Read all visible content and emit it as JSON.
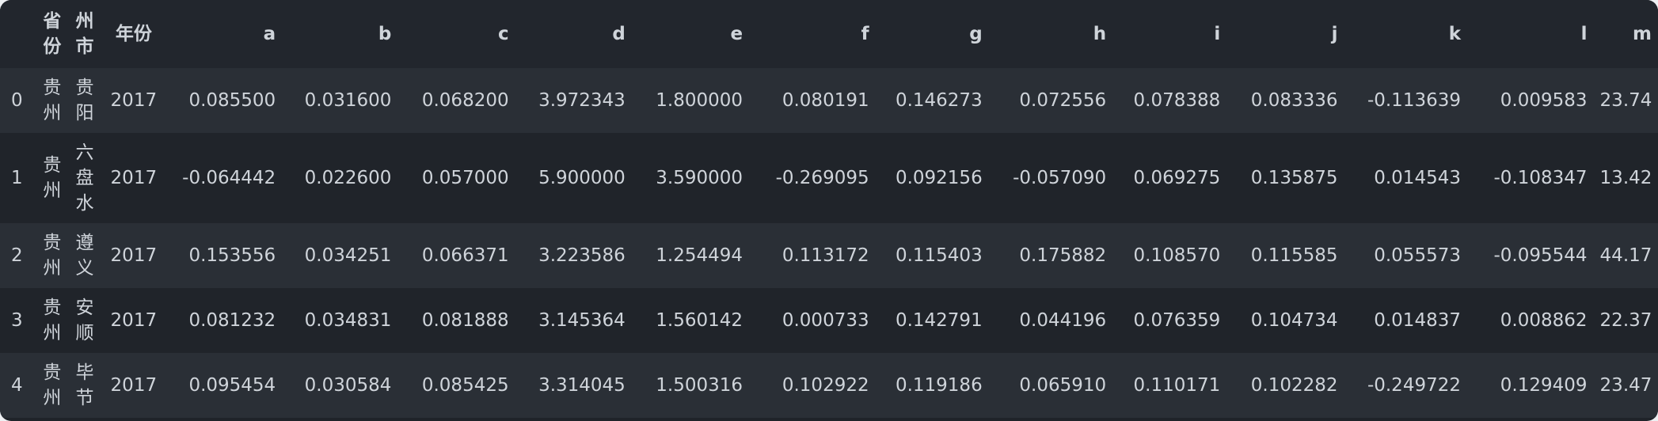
{
  "table": {
    "columns": {
      "index": "",
      "province": [
        "省",
        "份"
      ],
      "city": [
        "州",
        "市"
      ],
      "year": "年份",
      "a": "a",
      "b": "b",
      "c": "c",
      "d": "d",
      "e": "e",
      "f": "f",
      "g": "g",
      "h": "h",
      "i": "i",
      "j": "j",
      "k": "k",
      "l": "l",
      "m": "m"
    },
    "rows": [
      {
        "index": "0",
        "province": [
          "贵",
          "州"
        ],
        "city": [
          "贵",
          "阳"
        ],
        "year": "2017",
        "a": "0.085500",
        "b": "0.031600",
        "c": "0.068200",
        "d": "3.972343",
        "e": "1.800000",
        "f": "0.080191",
        "g": "0.146273",
        "h": "0.072556",
        "i": "0.078388",
        "j": "0.083336",
        "k": "-0.113639",
        "l": "0.009583",
        "m": "23.74"
      },
      {
        "index": "1",
        "province": [
          "贵",
          "州"
        ],
        "city": [
          "六",
          "盘",
          "水"
        ],
        "year": "2017",
        "a": "-0.064442",
        "b": "0.022600",
        "c": "0.057000",
        "d": "5.900000",
        "e": "3.590000",
        "f": "-0.269095",
        "g": "0.092156",
        "h": "-0.057090",
        "i": "0.069275",
        "j": "0.135875",
        "k": "0.014543",
        "l": "-0.108347",
        "m": "13.42"
      },
      {
        "index": "2",
        "province": [
          "贵",
          "州"
        ],
        "city": [
          "遵",
          "义"
        ],
        "year": "2017",
        "a": "0.153556",
        "b": "0.034251",
        "c": "0.066371",
        "d": "3.223586",
        "e": "1.254494",
        "f": "0.113172",
        "g": "0.115403",
        "h": "0.175882",
        "i": "0.108570",
        "j": "0.115585",
        "k": "0.055573",
        "l": "-0.095544",
        "m": "44.17"
      },
      {
        "index": "3",
        "province": [
          "贵",
          "州"
        ],
        "city": [
          "安",
          "顺"
        ],
        "year": "2017",
        "a": "0.081232",
        "b": "0.034831",
        "c": "0.081888",
        "d": "3.145364",
        "e": "1.560142",
        "f": "0.000733",
        "g": "0.142791",
        "h": "0.044196",
        "i": "0.076359",
        "j": "0.104734",
        "k": "0.014837",
        "l": "0.008862",
        "m": "22.37"
      },
      {
        "index": "4",
        "province": [
          "贵",
          "州"
        ],
        "city": [
          "毕",
          "节"
        ],
        "year": "2017",
        "a": "0.095454",
        "b": "0.030584",
        "c": "0.085425",
        "d": "3.314045",
        "e": "1.500316",
        "f": "0.102922",
        "g": "0.119186",
        "h": "0.065910",
        "i": "0.110171",
        "j": "0.102282",
        "k": "-0.249722",
        "l": "0.129409",
        "m": "23.47"
      }
    ]
  }
}
